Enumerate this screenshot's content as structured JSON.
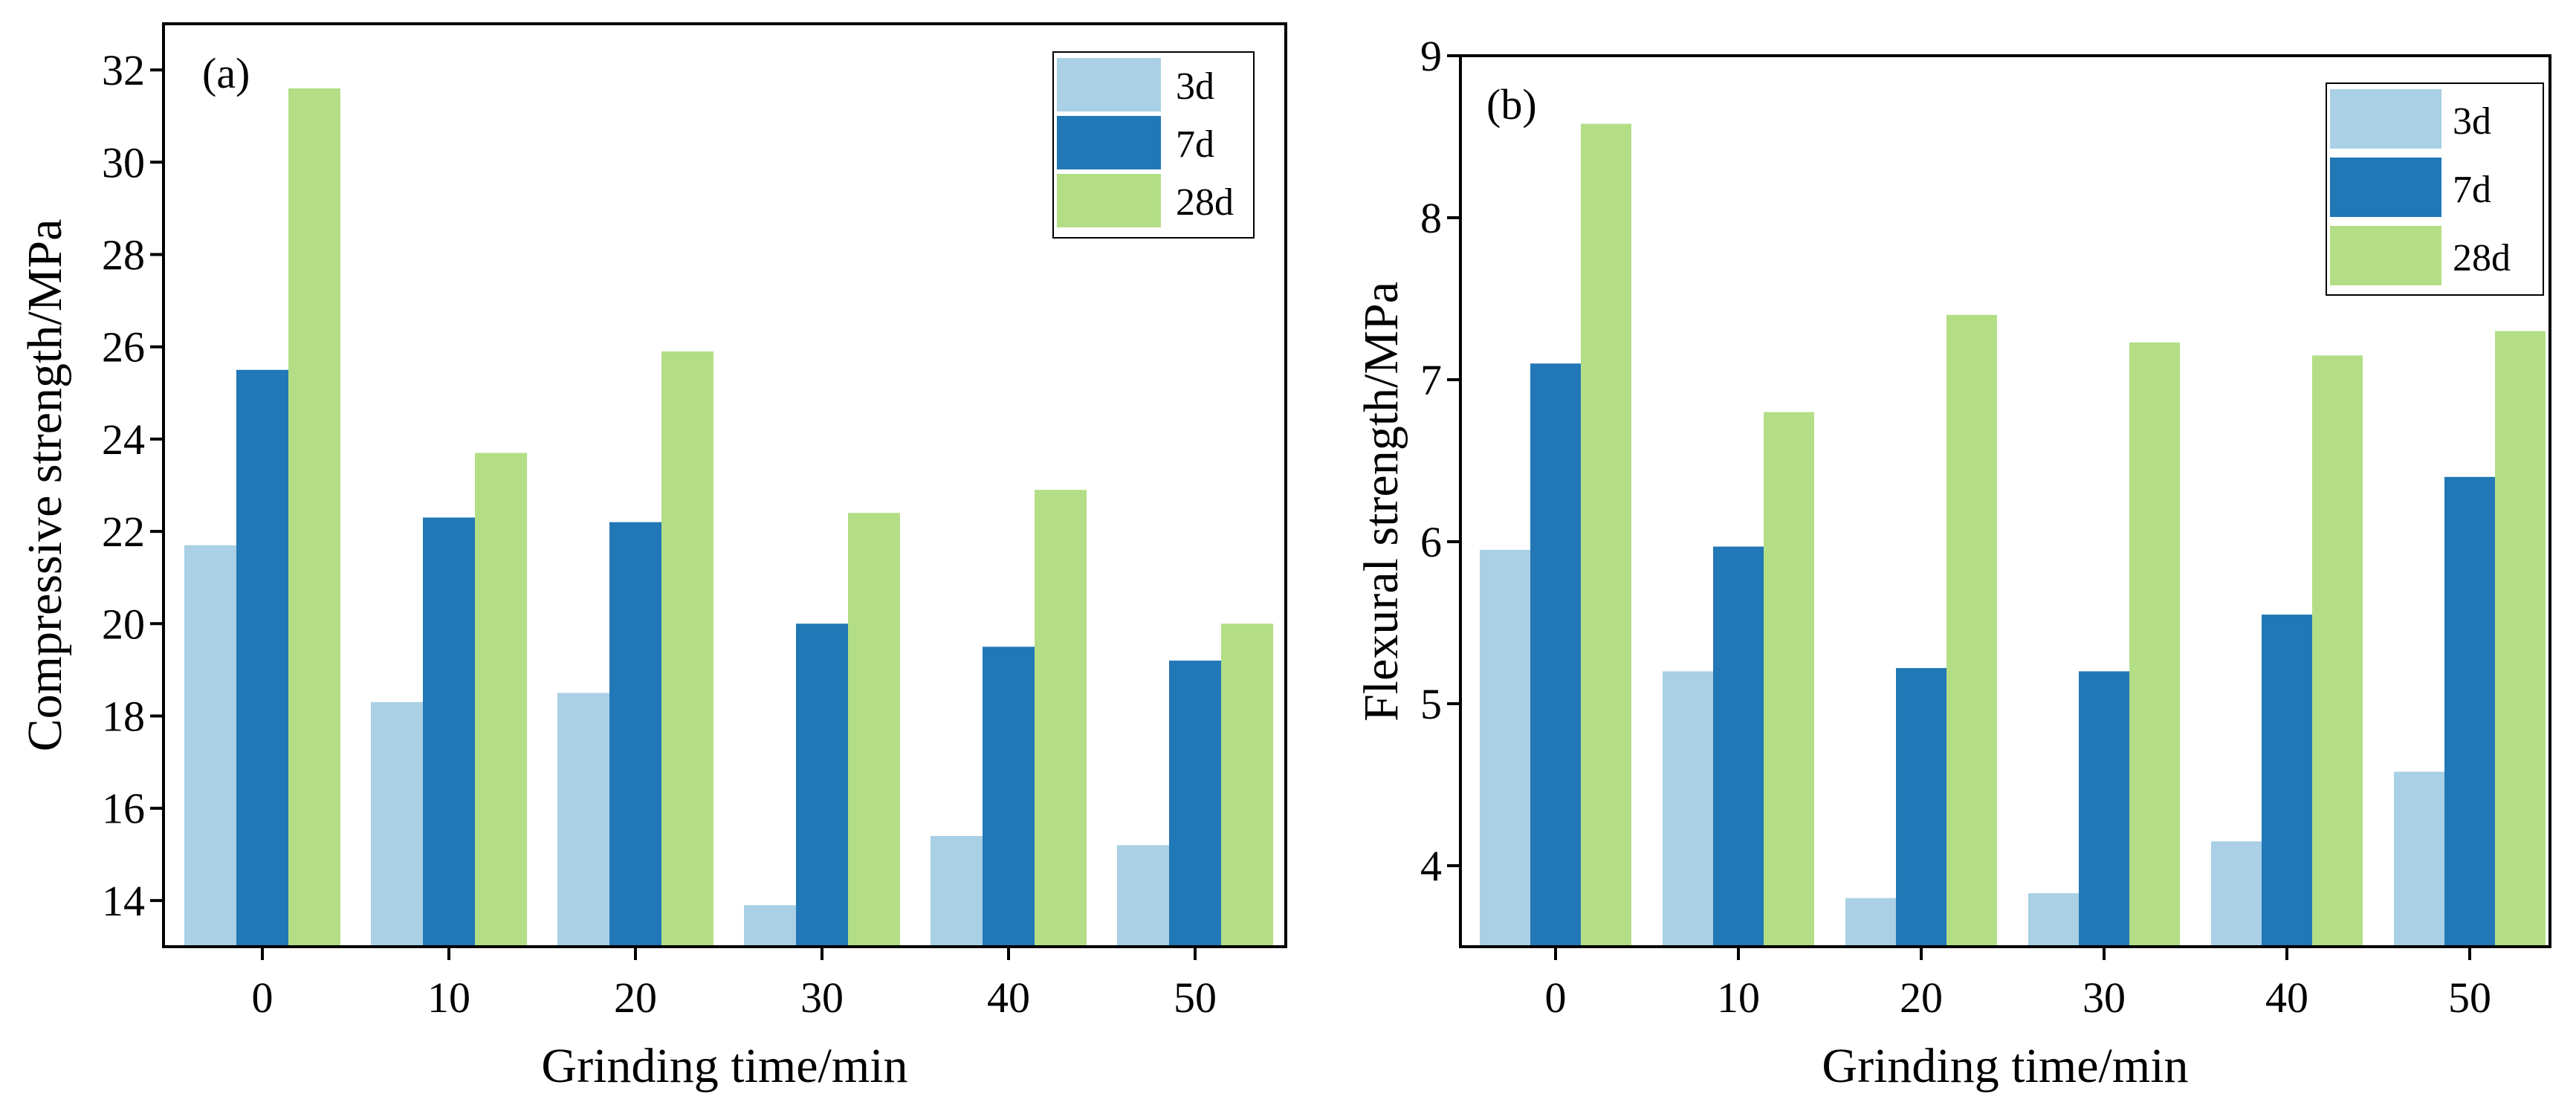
{
  "chart_data": [
    {
      "panel": "a",
      "type": "bar",
      "panel_label": "(a)",
      "xlabel": "Grinding time/min",
      "ylabel": "Compressive strength/MPa",
      "categories": [
        "0",
        "10",
        "20",
        "30",
        "40",
        "50"
      ],
      "ylim": [
        13,
        33
      ],
      "yticks": [
        14,
        16,
        18,
        20,
        22,
        24,
        26,
        28,
        30,
        32
      ],
      "legend_position": "top-right",
      "grid": false,
      "series": [
        {
          "name": "3d",
          "color": "#a9d0e5",
          "values": [
            21.7,
            18.3,
            18.5,
            13.9,
            15.4,
            15.2
          ]
        },
        {
          "name": "7d",
          "color": "#2277b6",
          "values": [
            25.5,
            22.3,
            22.2,
            20.0,
            19.5,
            19.2
          ]
        },
        {
          "name": "28d",
          "color": "#b3de86",
          "values": [
            31.6,
            23.7,
            25.9,
            22.4,
            22.9,
            20.0
          ]
        }
      ]
    },
    {
      "panel": "b",
      "type": "bar",
      "panel_label": "(b)",
      "xlabel": "Grinding time/min",
      "ylabel": "Flexural strength/MPa",
      "categories": [
        "0",
        "10",
        "20",
        "30",
        "40",
        "50"
      ],
      "ylim": [
        3.5,
        9
      ],
      "yticks": [
        4,
        5,
        6,
        7,
        8,
        9
      ],
      "legend_position": "top-right",
      "grid": false,
      "series": [
        {
          "name": "3d",
          "color": "#a9d0e5",
          "values": [
            5.95,
            5.2,
            3.8,
            3.83,
            4.15,
            4.58
          ]
        },
        {
          "name": "7d",
          "color": "#2277b6",
          "values": [
            7.1,
            5.97,
            5.22,
            5.2,
            5.55,
            6.4
          ]
        },
        {
          "name": "28d",
          "color": "#b3de86",
          "values": [
            8.58,
            6.8,
            7.4,
            7.23,
            7.15,
            7.3
          ]
        }
      ]
    }
  ]
}
